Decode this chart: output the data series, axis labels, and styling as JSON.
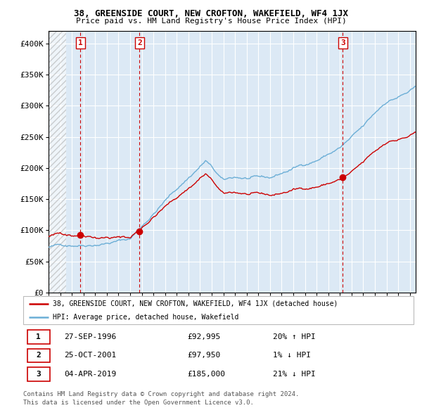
{
  "title": "38, GREENSIDE COURT, NEW CROFTON, WAKEFIELD, WF4 1JX",
  "subtitle": "Price paid vs. HM Land Registry's House Price Index (HPI)",
  "transactions": [
    {
      "num": 1,
      "date": "27-SEP-1996",
      "date_x": 1996.74,
      "price": 92995,
      "pct": "20%",
      "dir": "↑"
    },
    {
      "num": 2,
      "date": "25-OCT-2001",
      "date_x": 2001.81,
      "price": 97950,
      "pct": "1%",
      "dir": "↓"
    },
    {
      "num": 3,
      "date": "04-APR-2019",
      "date_x": 2019.25,
      "price": 185000,
      "pct": "21%",
      "dir": "↓"
    }
  ],
  "legend_property": "38, GREENSIDE COURT, NEW CROFTON, WAKEFIELD, WF4 1JX (detached house)",
  "legend_hpi": "HPI: Average price, detached house, Wakefield",
  "footer_line1": "Contains HM Land Registry data © Crown copyright and database right 2024.",
  "footer_line2": "This data is licensed under the Open Government Licence v3.0.",
  "ylim": [
    0,
    420000
  ],
  "xlim_start": 1994.0,
  "xlim_end": 2025.5,
  "hatch_end": 1995.5,
  "background_color": "#dce9f5",
  "grid_color": "#ffffff",
  "red_line_color": "#cc0000",
  "blue_line_color": "#6baed6",
  "dashed_color": "#cc0000",
  "dot_color": "#cc0000",
  "yticks": [
    0,
    50000,
    100000,
    150000,
    200000,
    250000,
    300000,
    350000,
    400000
  ],
  "ytick_labels": [
    "£0",
    "£50K",
    "£100K",
    "£150K",
    "£200K",
    "£250K",
    "£300K",
    "£350K",
    "£400K"
  ]
}
